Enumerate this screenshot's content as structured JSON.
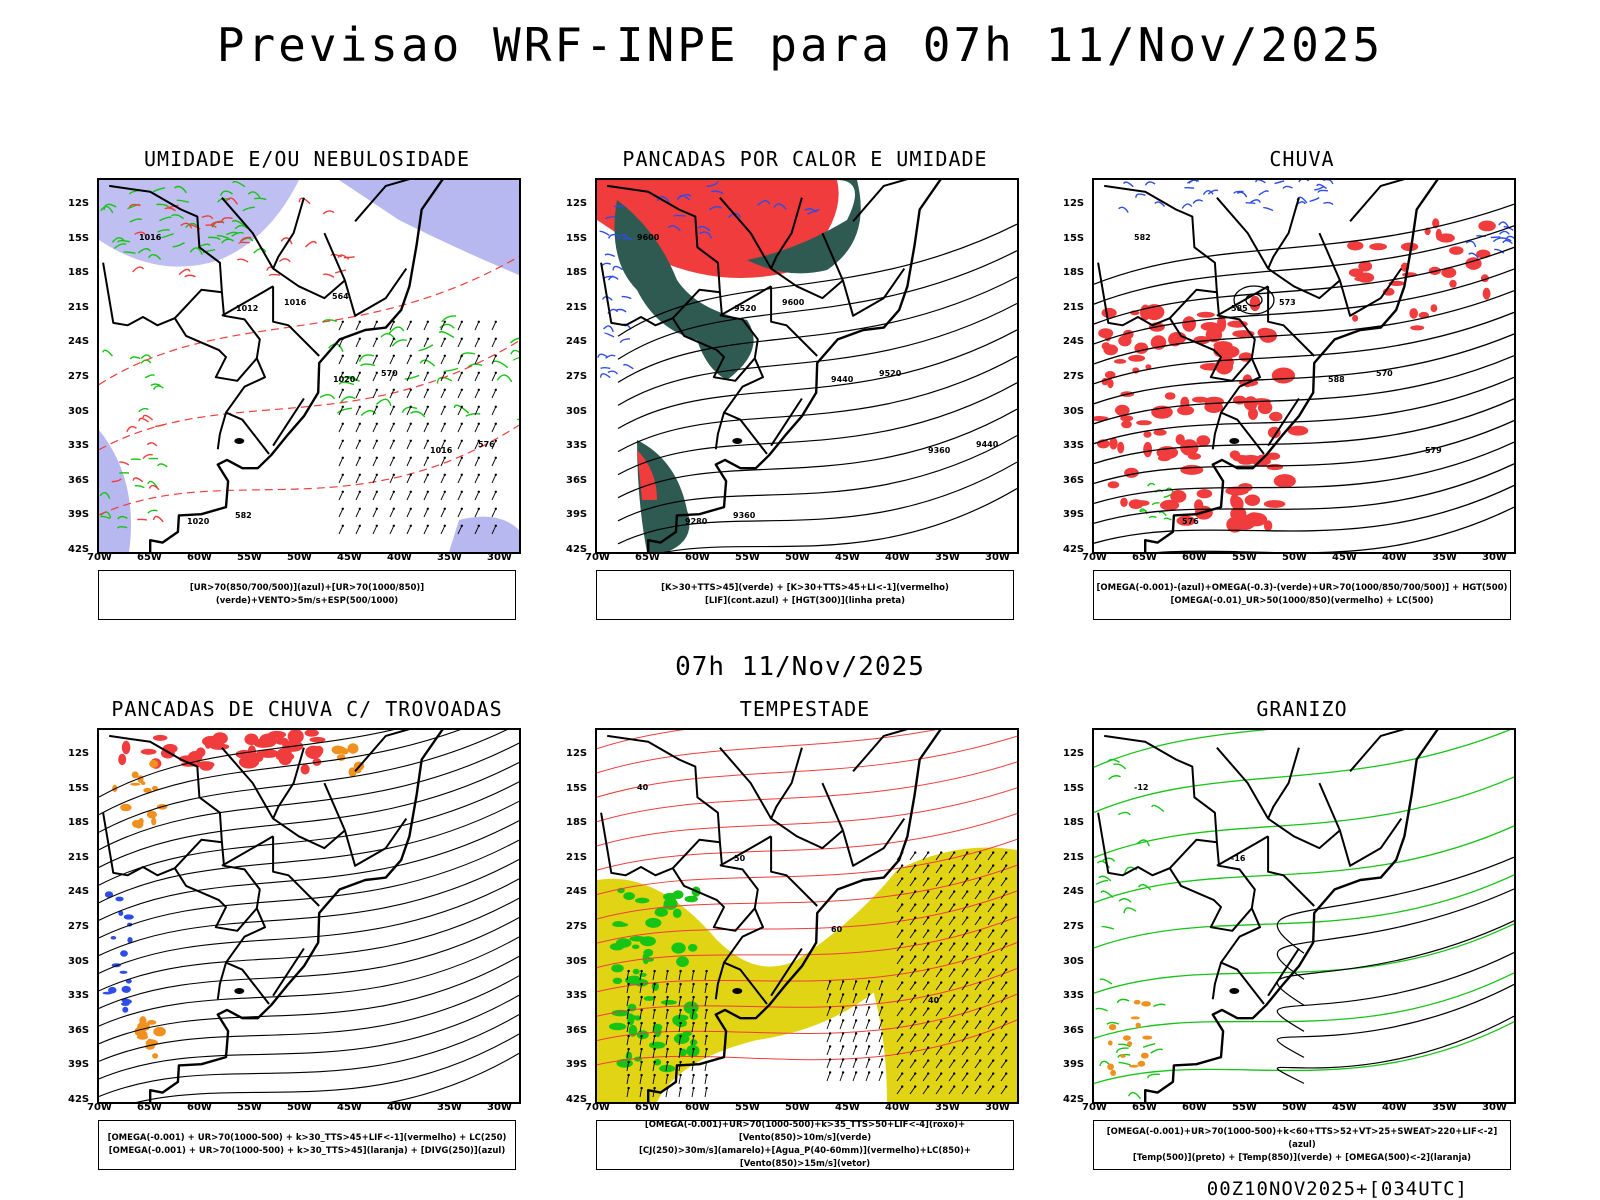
{
  "header": {
    "title": "Previsao WRF-INPE  para 07h 11/Nov/2025"
  },
  "mid_title": "07h 11/Nov/2025",
  "footer": "00Z10NOV2025+[034UTC]",
  "axes": {
    "lat_labels": [
      "12S",
      "15S",
      "18S",
      "21S",
      "24S",
      "27S",
      "30S",
      "33S",
      "36S",
      "39S",
      "42S"
    ],
    "lon_labels": [
      "70W",
      "65W",
      "60W",
      "55W",
      "50W",
      "45W",
      "40W",
      "35W",
      "30W"
    ]
  },
  "colors": {
    "lavender": "#b8b8f0",
    "green": "#16c416",
    "red": "#f03c3c",
    "darkteal": "#2e5a52",
    "blue": "#2d4de6",
    "orange": "#f0901e",
    "yellow": "#e0d414",
    "black": "#000000"
  },
  "panels": [
    {
      "id": "umidade",
      "title": "UMIDADE E/OU NEBULOSIDADE",
      "legend": [
        "[UR>70(850/700/500)](azul)+[UR>70(1000/850)](verde)+VENTO>5m/s+ESP(500/1000)"
      ],
      "contour_labels": [
        "1016",
        "1012",
        "1020",
        "1016",
        "1020",
        "1016",
        "570",
        "576",
        "582",
        "564"
      ]
    },
    {
      "id": "pancadas_calor",
      "title": "PANCADAS POR CALOR E UMIDADE",
      "legend": [
        "[K>30+TTS>45](verde) + [K>30+TTS>45+LI<-1](vermelho)",
        "[LIF](cont.azul) + [HGT(300)](linha preta)"
      ],
      "contour_labels": [
        "9600",
        "9520",
        "9440",
        "9360",
        "9280",
        "9600",
        "9520",
        "9440",
        "9360"
      ]
    },
    {
      "id": "chuva",
      "title": "CHUVA",
      "legend": [
        "[OMEGA(-0.001)-(azul)+OMEGA(-0.3)-(verde)+UR>70(1000/850/700/500)] + HGT(500)",
        "[OMEGA(-0.01)_UR>50(1000/850)(vermelho) + LC(500)"
      ],
      "contour_labels": [
        "582",
        "585",
        "588",
        "579",
        "576",
        "573",
        "570"
      ]
    },
    {
      "id": "trovoadas",
      "title": "PANCADAS DE CHUVA C/ TROVOADAS",
      "legend": [
        "[OMEGA(-0.001) + UR>70(1000-500) + k>30_TTS>45+LIF<-1](vermelho) + LC(250)",
        "[OMEGA(-0.001) + UR>70(1000-500) + k>30_TTS>45](laranja) + [DIVG(250)](azul)"
      ],
      "contour_labels": []
    },
    {
      "id": "tempestade",
      "title": "TEMPESTADE",
      "legend": [
        "[OMEGA(-0.001)+UR>70(1000-500)+k>35_TTS>50+LIF<-4](roxo)+[Vento(850)>10m/s](verde)",
        "[CJ(250)>30m/s](amarelo)+[Agua_P(40-60mm)](vermelho)+LC(850)+[Vento(850)>15m/s](vetor)"
      ],
      "contour_labels": [
        "40",
        "50",
        "60",
        "40"
      ]
    },
    {
      "id": "granizo",
      "title": "GRANIZO",
      "legend": [
        "[OMEGA(-0.001)+UR>70(1000-500)+k<60+TTS>52+VT>25+SWEAT>220+LIF<-2](azul)",
        "[Temp(500)](preto) + [Temp(850)](verde) + [OMEGA(500)<-2](laranja)"
      ],
      "contour_labels": [
        "-12",
        "-16"
      ]
    }
  ]
}
